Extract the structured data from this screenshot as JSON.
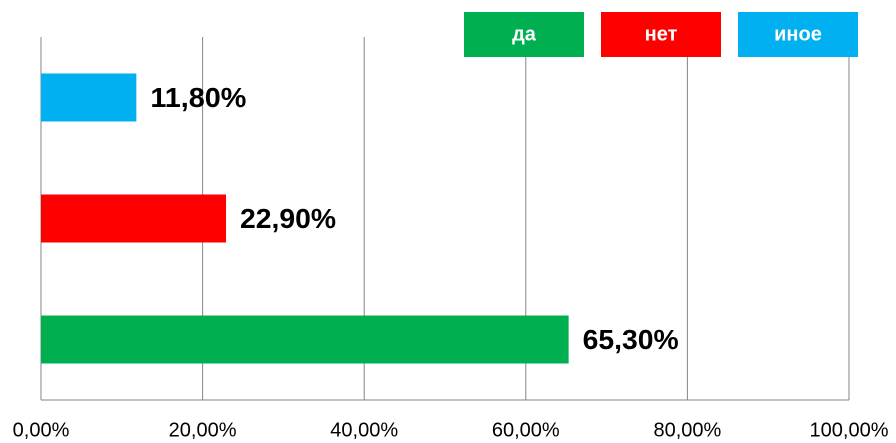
{
  "chart_data": {
    "type": "bar",
    "orientation": "horizontal",
    "series": [
      {
        "name": "да",
        "color": "#00b050",
        "values": [
          65.3
        ],
        "value_labels": [
          "65,30%"
        ]
      },
      {
        "name": "нет",
        "color": "#ff0000",
        "values": [
          22.9
        ],
        "value_labels": [
          "22,90%"
        ]
      },
      {
        "name": "иное",
        "color": "#00b0f0",
        "values": [
          11.8
        ],
        "value_labels": [
          "11,80%"
        ]
      }
    ],
    "xlim": [
      0,
      100
    ],
    "xticks": [
      {
        "value": 0,
        "label": "0,00%"
      },
      {
        "value": 20,
        "label": "20,00%"
      },
      {
        "value": 40,
        "label": "40,00%"
      },
      {
        "value": 60,
        "label": "60,00%"
      },
      {
        "value": 80,
        "label": "80,00%"
      },
      {
        "value": 100,
        "label": "100,00%"
      }
    ],
    "grid": true,
    "legend": "top-right"
  }
}
